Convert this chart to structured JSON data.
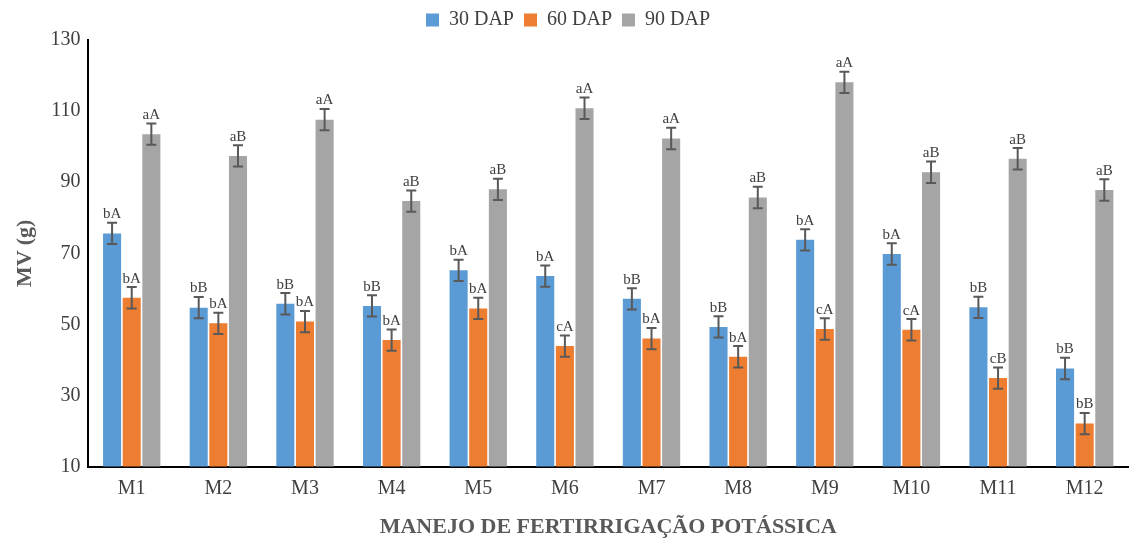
{
  "chart_data": {
    "type": "bar",
    "xlabel": "MANEJO DE FERTIRRIGAÇÃO POTÁSSICA",
    "ylabel": "MV (g)",
    "categories": [
      "M1",
      "M2",
      "M3",
      "M4",
      "M5",
      "M6",
      "M7",
      "M8",
      "M9",
      "M10",
      "M11",
      "M12"
    ],
    "series": [
      {
        "name": "30 DAP",
        "color": "#5b9bd5",
        "values": [
          75.6,
          54.7,
          55.8,
          55.2,
          65.2,
          63.6,
          57.2,
          49.3,
          73.8,
          69.8,
          54.8,
          37.6
        ],
        "errors": [
          3,
          3,
          3,
          3,
          3,
          3,
          3,
          3,
          3,
          3,
          3,
          3
        ],
        "value_labels": [
          "bA",
          "bB",
          "bB",
          "bB",
          "bA",
          "bA",
          "bB",
          "bB",
          "bA",
          "bA",
          "bB",
          "bB"
        ]
      },
      {
        "name": "60 DAP",
        "color": "#ed7d31",
        "values": [
          57.5,
          50.3,
          50.8,
          45.6,
          54.5,
          43.9,
          46.0,
          40.9,
          48.7,
          48.5,
          34.9,
          22.1
        ],
        "errors": [
          3,
          3,
          3,
          3,
          3,
          3,
          3,
          3,
          3,
          3,
          3,
          3
        ],
        "value_labels": [
          "bA",
          "bA",
          "bA",
          "bA",
          "bA",
          "cA",
          "bA",
          "bA",
          "cA",
          "cA",
          "cB",
          "bB"
        ]
      },
      {
        "name": "90 DAP",
        "color": "#a5a5a5",
        "values": [
          103.5,
          97.4,
          107.6,
          84.7,
          88.0,
          110.8,
          102.3,
          85.7,
          118.1,
          92.8,
          96.6,
          87.8
        ],
        "errors": [
          3,
          3,
          3,
          3,
          3,
          3,
          3,
          3,
          3,
          3,
          3,
          3
        ],
        "value_labels": [
          "aA",
          "aB",
          "aA",
          "aB",
          "aB",
          "aA",
          "aA",
          "aB",
          "aA",
          "aB",
          "aB",
          "aB"
        ]
      }
    ],
    "ylim": [
      10,
      130
    ],
    "yticks": [
      10,
      30,
      50,
      70,
      90,
      110,
      130
    ],
    "grid": false,
    "legend": "top"
  }
}
